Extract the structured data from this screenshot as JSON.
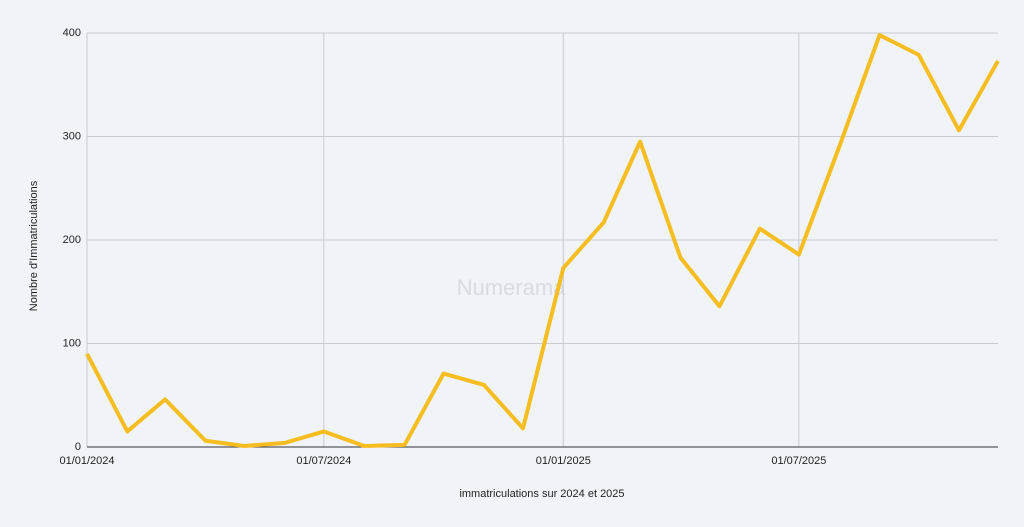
{
  "chart_data": {
    "type": "line",
    "watermark": "Numerama",
    "x_label": "immatriculations sur 2024 et 2025",
    "y_label": "Nombre d'Immatriculations",
    "x": [
      "01/01/2024",
      "01/02/2024",
      "01/03/2024",
      "01/04/2024",
      "01/05/2024",
      "01/06/2024",
      "01/07/2024",
      "01/08/2024",
      "01/09/2024",
      "01/10/2024",
      "01/11/2024",
      "01/12/2024",
      "01/01/2025",
      "01/02/2025",
      "01/03/2025",
      "01/04/2025",
      "01/05/2025",
      "01/06/2025",
      "01/07/2025",
      "01/08/2025",
      "01/09/2025",
      "01/10/2025",
      "01/11/2025",
      "01/12/2025"
    ],
    "series": [
      {
        "name": "Immatriculations",
        "color": "#f5bd1f",
        "values": [
          90,
          15,
          46,
          6,
          1,
          4,
          15,
          1,
          2,
          71,
          60,
          18,
          173,
          217,
          295,
          183,
          136,
          211,
          186,
          290,
          398,
          379,
          306,
          373
        ]
      }
    ],
    "xlim": [
      "01/01/2024",
      "01/12/2025"
    ],
    "xticks": [
      "01/01/2024",
      "01/07/2024",
      "01/01/2025",
      "01/07/2025"
    ],
    "ylim": [
      0,
      400
    ],
    "yticks": [
      0,
      100,
      200,
      300,
      400
    ],
    "grid": true
  }
}
